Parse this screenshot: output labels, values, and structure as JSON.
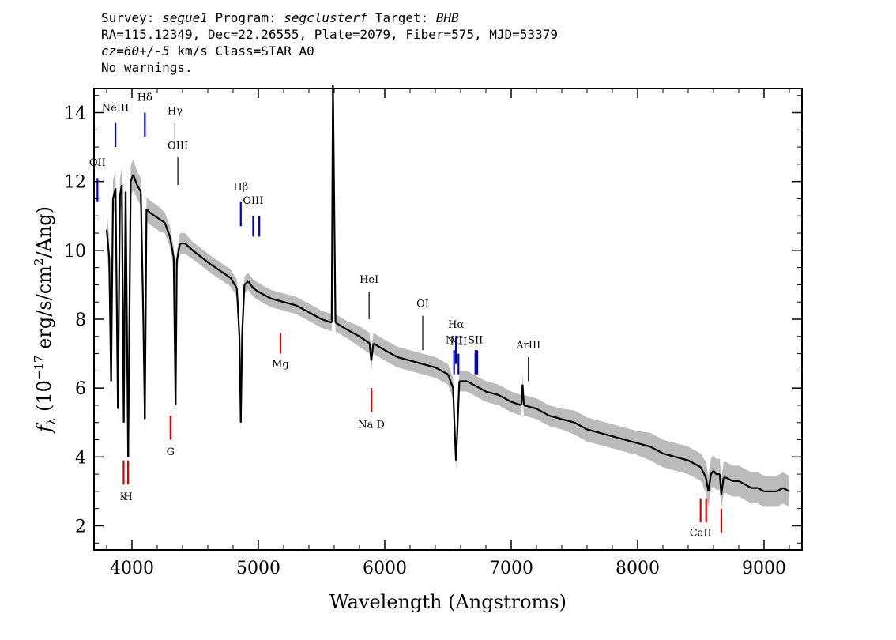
{
  "header": {
    "survey_label": "Survey:",
    "survey": "segue1",
    "program_label": "Program:",
    "program": "segclusterf",
    "target_label": "Target:",
    "target": "BHB",
    "line2": "RA=115.12349, Dec=22.26555, Plate=2079, Fiber=575, MJD=53379",
    "cz": "cz=60+/-5",
    "cz_rest": " km/s Class=STAR A0",
    "line4": "No warnings."
  },
  "colors": {
    "blue_lines": "#0000cc",
    "red_lines": "#dd0000",
    "spectrum": "#000000",
    "error_band": "#bbbbbb",
    "emission_marks": "#000000"
  },
  "chart_data": {
    "type": "line",
    "xlabel": "Wavelength (Angstroms)",
    "ylabel": "f_λ (10^-17 erg/s/cm^2/Ang)",
    "ylabel_parts": {
      "sym": "f",
      "sub": "λ",
      "pre": " (10",
      "sup1": "−17",
      "mid": " erg/s/cm",
      "sup2": "2",
      "post": "/Ang)"
    },
    "xlim": [
      3700,
      9300
    ],
    "ylim": [
      1.3,
      14.7
    ],
    "x_ticks": [
      4000,
      5000,
      6000,
      7000,
      8000,
      9000
    ],
    "y_ticks": [
      2,
      4,
      6,
      8,
      10,
      12,
      14
    ],
    "grid": false,
    "series": [
      {
        "x": [
          3800,
          3820,
          3835,
          3850,
          3870,
          3889,
          3905,
          3920,
          3935,
          3950,
          3970,
          3990,
          4010,
          4040,
          4070,
          4090,
          4102,
          4115,
          4140,
          4180,
          4220,
          4260,
          4300,
          4330,
          4340,
          4345,
          4355,
          4380,
          4420,
          4480,
          4550,
          4620,
          4700,
          4780,
          4830,
          4850,
          4861,
          4872,
          4890,
          4920,
          4960,
          5000,
          5100,
          5200,
          5300,
          5400,
          5500,
          5580,
          5590,
          5610,
          5700,
          5800,
          5880,
          5893,
          5910,
          6000,
          6100,
          6200,
          6300,
          6400,
          6500,
          6540,
          6555,
          6563,
          6572,
          6590,
          6650,
          6700,
          6800,
          6900,
          7000,
          7080,
          7090,
          7100,
          7200,
          7300,
          7400,
          7500,
          7600,
          7700,
          7800,
          7900,
          8000,
          8100,
          8200,
          8300,
          8400,
          8500,
          8540,
          8560,
          8580,
          8600,
          8620,
          8650,
          8662,
          8680,
          8700,
          8750,
          8800,
          8850,
          8900,
          8950,
          9000,
          9050,
          9100,
          9150,
          9200
        ],
        "y": [
          10.6,
          9.8,
          6.2,
          11.5,
          11.8,
          5.4,
          11.6,
          11.9,
          5.0,
          11.7,
          4.0,
          12.0,
          12.2,
          11.9,
          11.7,
          8.0,
          5.1,
          11.2,
          11.1,
          11.0,
          10.9,
          10.8,
          10.4,
          9.8,
          7.0,
          5.5,
          9.7,
          10.2,
          10.2,
          10.0,
          9.8,
          9.6,
          9.4,
          9.2,
          8.9,
          7.5,
          5.0,
          7.6,
          9.0,
          9.1,
          8.9,
          8.8,
          8.6,
          8.5,
          8.4,
          8.2,
          8.0,
          7.9,
          14.8,
          7.9,
          7.7,
          7.5,
          7.3,
          6.8,
          7.3,
          7.1,
          6.9,
          6.8,
          6.7,
          6.6,
          6.4,
          6.0,
          4.6,
          3.9,
          4.6,
          6.2,
          6.2,
          6.1,
          5.9,
          5.8,
          5.6,
          5.5,
          6.1,
          5.5,
          5.4,
          5.2,
          5.1,
          5.0,
          4.8,
          4.7,
          4.6,
          4.5,
          4.4,
          4.3,
          4.1,
          4.0,
          3.9,
          3.7,
          3.4,
          3.0,
          3.5,
          3.6,
          3.5,
          3.5,
          2.9,
          3.4,
          3.4,
          3.3,
          3.3,
          3.2,
          3.1,
          3.1,
          3.0,
          3.0,
          3.0,
          3.1,
          3.0
        ],
        "err": [
          0.6,
          0.6,
          0.5,
          0.55,
          0.5,
          0.45,
          0.5,
          0.5,
          0.45,
          0.45,
          0.4,
          0.45,
          0.45,
          0.4,
          0.4,
          0.35,
          0.35,
          0.35,
          0.35,
          0.35,
          0.35,
          0.3,
          0.3,
          0.3,
          0.3,
          0.3,
          0.3,
          0.3,
          0.3,
          0.25,
          0.25,
          0.25,
          0.25,
          0.25,
          0.25,
          0.25,
          0.25,
          0.25,
          0.25,
          0.25,
          0.25,
          0.25,
          0.25,
          0.25,
          0.25,
          0.25,
          0.25,
          0.25,
          0.25,
          0.25,
          0.25,
          0.3,
          0.3,
          0.3,
          0.3,
          0.3,
          0.3,
          0.3,
          0.3,
          0.3,
          0.3,
          0.3,
          0.3,
          0.3,
          0.3,
          0.3,
          0.3,
          0.3,
          0.3,
          0.3,
          0.3,
          0.3,
          0.3,
          0.3,
          0.3,
          0.3,
          0.3,
          0.35,
          0.35,
          0.35,
          0.35,
          0.35,
          0.35,
          0.4,
          0.4,
          0.4,
          0.4,
          0.4,
          0.45,
          0.45,
          0.45,
          0.45,
          0.45,
          0.45,
          0.45,
          0.45,
          0.45,
          0.45,
          0.45,
          0.45,
          0.45,
          0.45,
          0.45,
          0.45,
          0.45,
          0.45,
          0.45
        ]
      }
    ],
    "line_markers": [
      {
        "name": "OII",
        "wave": 3727,
        "group": "blue",
        "y0": 11.4,
        "y1": 12.1,
        "ly": 12.45
      },
      {
        "name": "NeIII",
        "wave": 3869,
        "group": "blue",
        "y0": 13.0,
        "y1": 13.7,
        "ly": 14.05
      },
      {
        "name": "Hδ",
        "wave": 4102,
        "group": "blue",
        "y0": 13.3,
        "y1": 14.0,
        "ly": 14.35
      },
      {
        "name": "Hγ",
        "wave": 4340,
        "group": "black",
        "y0": 12.9,
        "y1": 13.7,
        "ly": 13.95
      },
      {
        "name": "OIII",
        "wave": 4363,
        "group": "black",
        "y0": 11.9,
        "y1": 12.7,
        "ly": 12.95
      },
      {
        "name": "Hβ",
        "wave": 4861,
        "group": "blue",
        "y0": 10.7,
        "y1": 11.4,
        "ly": 11.75
      },
      {
        "name": "OIII",
        "wave": 4959,
        "group": "blue",
        "y0": 10.4,
        "y1": 11.0,
        "ly": 11.35
      },
      {
        "name": "",
        "wave": 5007,
        "group": "blue",
        "y0": 10.4,
        "y1": 11.0,
        "ly": 11.35
      },
      {
        "name": "HeI",
        "wave": 5876,
        "group": "black",
        "y0": 8.0,
        "y1": 8.8,
        "ly": 9.05
      },
      {
        "name": "OI",
        "wave": 6300,
        "group": "black",
        "y0": 7.1,
        "y1": 8.1,
        "ly": 8.35
      },
      {
        "name": "NII",
        "wave": 6548,
        "group": "blue",
        "y0": 6.4,
        "y1": 7.1,
        "ly": 7.3
      },
      {
        "name": "Hα",
        "wave": 6563,
        "group": "blue",
        "y0": 6.7,
        "y1": 7.5,
        "ly": 7.75
      },
      {
        "name": "NII",
        "wave": 6583,
        "group": "blue",
        "y0": 6.4,
        "y1": 7.0,
        "ly": 7.25
      },
      {
        "name": "SII",
        "wave": 6717,
        "group": "blue",
        "y0": 6.4,
        "y1": 7.1,
        "ly": 7.3
      },
      {
        "name": "",
        "wave": 6731,
        "group": "blue",
        "y0": 6.4,
        "y1": 7.1,
        "ly": 7.3
      },
      {
        "name": "ArIII",
        "wave": 7136,
        "group": "black",
        "y0": 6.2,
        "y1": 6.9,
        "ly": 7.15
      },
      {
        "name": "K",
        "wave": 3934,
        "group": "red",
        "y0": 3.2,
        "y1": 3.9,
        "ly": 2.75
      },
      {
        "name": "H",
        "wave": 3969,
        "group": "red",
        "y0": 3.2,
        "y1": 3.9,
        "ly": 2.75
      },
      {
        "name": "G",
        "wave": 4305,
        "group": "red",
        "y0": 4.5,
        "y1": 5.2,
        "ly": 4.05
      },
      {
        "name": "Mg",
        "wave": 5175,
        "group": "red",
        "y0": 7.0,
        "y1": 7.6,
        "ly": 6.6
      },
      {
        "name": "Na D",
        "wave": 5894,
        "group": "red",
        "y0": 5.3,
        "y1": 6.0,
        "ly": 4.85
      },
      {
        "name": "CaII",
        "wave": 8498,
        "group": "red",
        "y0": 2.1,
        "y1": 2.8,
        "ly": 1.7
      },
      {
        "name": "",
        "wave": 8542,
        "group": "red",
        "y0": 2.1,
        "y1": 2.8,
        "ly": 1.7
      },
      {
        "name": "",
        "wave": 8662,
        "group": "red",
        "y0": 1.8,
        "y1": 2.5,
        "ly": 1.7
      }
    ]
  }
}
